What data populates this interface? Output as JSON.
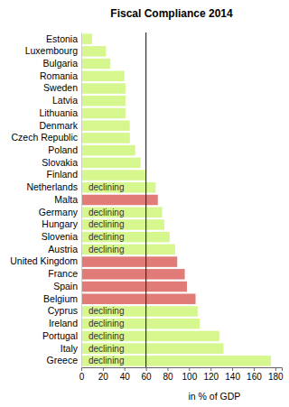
{
  "chart_data": {
    "type": "bar",
    "title": "Fiscal Compliance 2014",
    "xlabel": "in % of GDP",
    "orientation": "horizontal",
    "categories": [
      "Estonia",
      "Luxembourg",
      "Bulgaria",
      "Romania",
      "Sweden",
      "Latvia",
      "Lithuania",
      "Denmark",
      "Czech Republic",
      "Poland",
      "Slovakia",
      "Finland",
      "Netherlands",
      "Malta",
      "Germany",
      "Hungary",
      "Slovenia",
      "Austria",
      "United Kingdom",
      "France",
      "Spain",
      "Belgium",
      "Cyprus",
      "Ireland",
      "Portugal",
      "Italy",
      "Greece"
    ],
    "values": [
      10,
      23,
      27,
      40,
      41,
      41,
      41,
      45,
      45,
      50,
      55,
      60,
      69,
      71,
      75,
      77,
      82,
      87,
      89,
      96,
      98,
      106,
      108,
      110,
      128,
      132,
      176
    ],
    "colors": [
      "#d6f78e",
      "#d6f78e",
      "#d6f78e",
      "#d6f78e",
      "#d6f78e",
      "#d6f78e",
      "#d6f78e",
      "#d6f78e",
      "#d6f78e",
      "#d6f78e",
      "#d6f78e",
      "#d6f78e",
      "#d6f78e",
      "#e07b78",
      "#d6f78e",
      "#d6f78e",
      "#d6f78e",
      "#d6f78e",
      "#e07b78",
      "#e07b78",
      "#e07b78",
      "#e07b78",
      "#d6f78e",
      "#d6f78e",
      "#d6f78e",
      "#d6f78e",
      "#d6f78e"
    ],
    "annotations": [
      null,
      null,
      null,
      null,
      null,
      null,
      null,
      null,
      null,
      null,
      null,
      null,
      "declining",
      null,
      "declining",
      "declining",
      "declining",
      "declining",
      null,
      null,
      null,
      null,
      "declining",
      "declining",
      "declining",
      "declining",
      "declining"
    ],
    "reference_line": 60,
    "xlim": [
      0,
      186
    ],
    "xticks": [
      0,
      20,
      40,
      60,
      80,
      100,
      120,
      140,
      160,
      180
    ]
  }
}
